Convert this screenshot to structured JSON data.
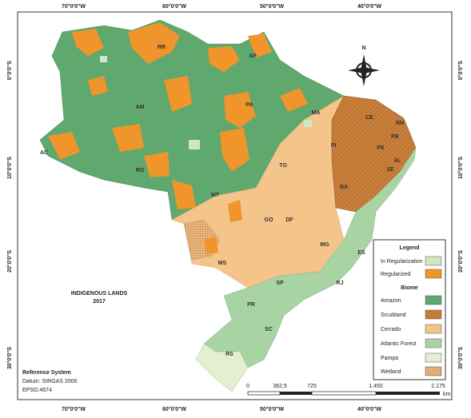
{
  "graticule": {
    "longitudes": [
      "70°0'0\"W",
      "60°0'0\"W",
      "50°0'0\"W",
      "40°0'0\"W"
    ],
    "latitudes": [
      "0°0'0\"S",
      "10°0'0\"S",
      "20°0'0\"S",
      "30°0'0\"S"
    ]
  },
  "states": [
    "RR",
    "AP",
    "AM",
    "PA",
    "MA",
    "CE",
    "RN",
    "PB",
    "PE",
    "AL",
    "SE",
    "PI",
    "AC",
    "RO",
    "TO",
    "BA",
    "MT",
    "GO",
    "DF",
    "MG",
    "ES",
    "MS",
    "SP",
    "RJ",
    "PR",
    "SC",
    "RS"
  ],
  "title": {
    "line1": "INDIGENOUS LANDS",
    "line2": "2017"
  },
  "legend": {
    "title": "Legend",
    "land_status": [
      "In Regularization",
      "Regularized"
    ],
    "biome_title": "Biome",
    "biomes": [
      "Amazon",
      "Srcubland",
      "Cerrado",
      "Atlantic Forest",
      "Pampa",
      "Wetland"
    ]
  },
  "reference_system": {
    "title": "Reference System",
    "datum": "Datum: SIRGAS 2000",
    "epsg": "EPSG:4674"
  },
  "scale_bar": {
    "labels": [
      "0",
      "362,5",
      "725",
      "1.450",
      "2.175"
    ],
    "unit": "km"
  },
  "north_arrow": "N"
}
